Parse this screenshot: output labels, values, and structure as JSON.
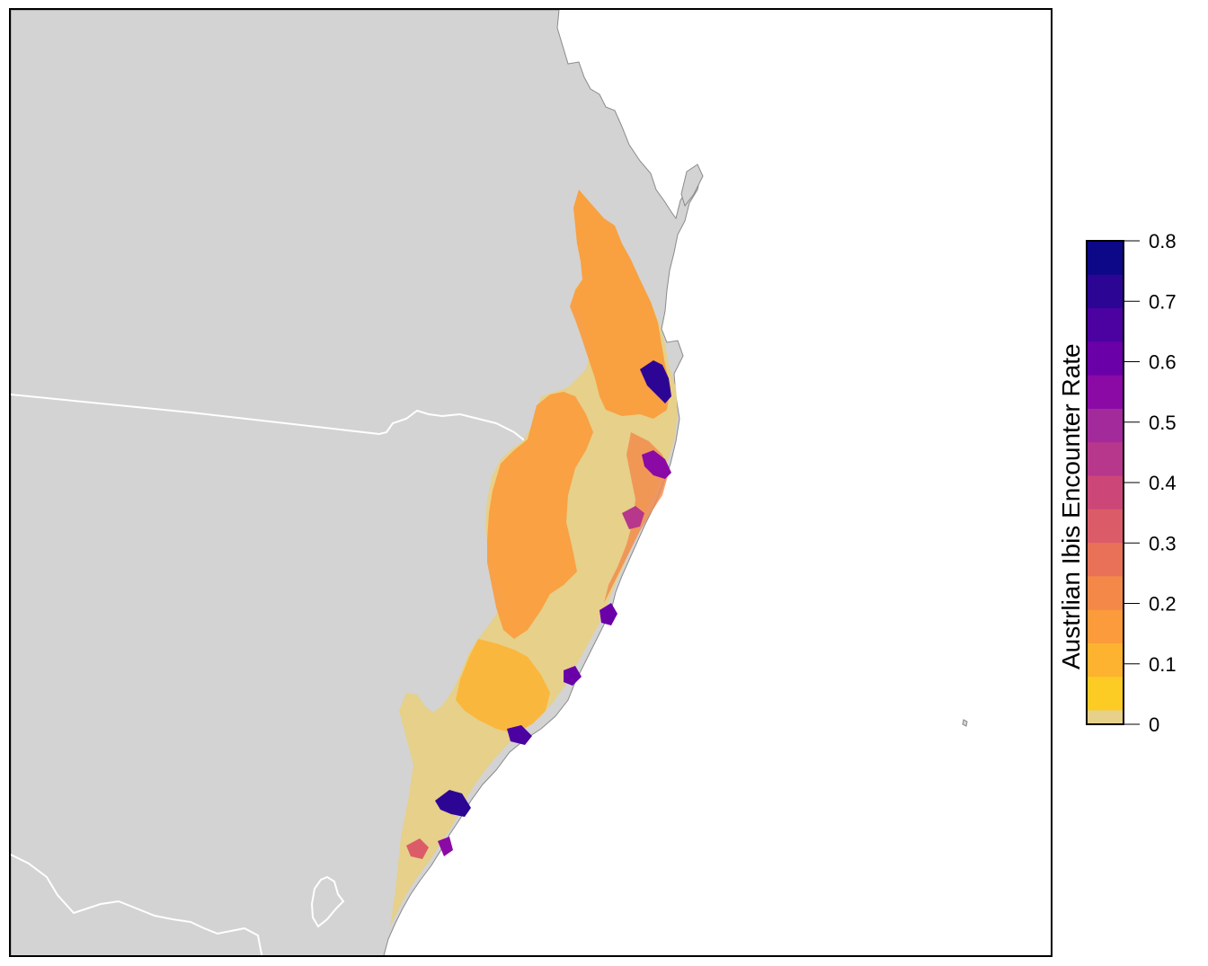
{
  "legend": {
    "title": "Austrlian Ibis Encounter Rate",
    "min": 0,
    "max": 0.8,
    "tick_values": [
      0,
      0.1,
      0.2,
      0.3,
      0.4,
      0.5,
      0.6,
      0.7,
      0.8
    ],
    "tick_labels": [
      "0",
      "0.1",
      "0.2",
      "0.3",
      "0.4",
      "0.5",
      "0.6",
      "0.7",
      "0.8"
    ],
    "colors": [
      "#e6d08a",
      "#fccc25",
      "#fdb32f",
      "#fb9b3b",
      "#f48849",
      "#e97158",
      "#db5c68",
      "#cc4778",
      "#b6378b",
      "#a22a9b",
      "#8b0aa5",
      "#6a00a8",
      "#4c02a1",
      "#2d0594",
      "#0d0887"
    ]
  },
  "map": {
    "land_color": "#d3d3d3",
    "ocean_color": "#ffffff",
    "coast_color": "#8a8a8a",
    "border_color": "#ffffff"
  }
}
